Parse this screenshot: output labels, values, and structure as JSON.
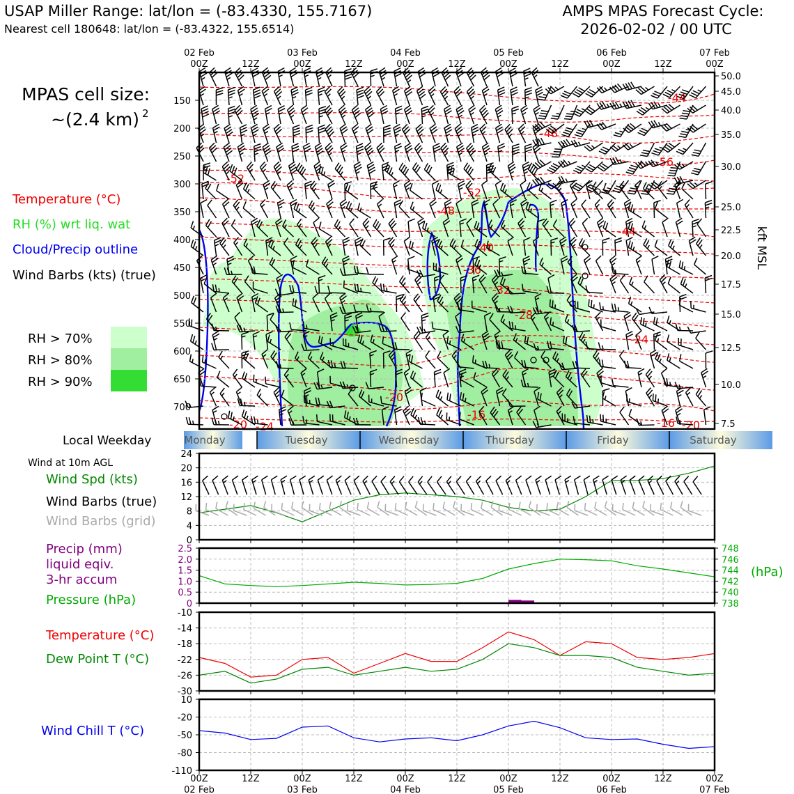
{
  "header": {
    "left_title": "USAP Miller Range: lat/lon = (-83.4330, 155.7167)",
    "left_sub": "Nearest cell 180648: lat/lon = (-83.4322, 155.6514)",
    "right_title": "AMPS MPAS Forecast Cycle:",
    "right_sub": "2026-02-02 / 00 UTC"
  },
  "legend": {
    "cell_size_line1": "MPAS cell size:",
    "cell_size_line2": "~(2.4 km)",
    "cell_size_exp": "2",
    "temperature": "Temperature (°C)",
    "rh": "RH (%) wrt liq. wat",
    "cloud": "Cloud/Precip outline",
    "wind_barbs": "Wind Barbs (kts) (true)",
    "rh70": "RH > 70%",
    "rh80": "RH > 80%",
    "rh90": "RH > 90%"
  },
  "colors": {
    "temperature": "#ee0000",
    "rh_text": "#22dd22",
    "cloud": "#0000ee",
    "rh70": "#ccffcc",
    "rh80": "#a0eea0",
    "rh90": "#33dd33",
    "wind_spd": "#008800",
    "precip": "#800080",
    "pressure": "#00aa00",
    "grid_barbs": "#aaaaaa",
    "windchill": "#0000ee"
  },
  "time_axis": {
    "top_dates": [
      "02 Feb",
      "03 Feb",
      "04 Feb",
      "05 Feb",
      "06 Feb",
      "07 Feb"
    ],
    "ticks": [
      "00Z",
      "12Z",
      "00Z",
      "12Z",
      "00Z",
      "12Z",
      "00Z",
      "12Z",
      "00Z",
      "12Z",
      "00Z"
    ],
    "bottom_dates": [
      "02 Feb",
      "03 Feb",
      "04 Feb",
      "05 Feb",
      "06 Feb",
      "07 Feb"
    ]
  },
  "weekday": {
    "label": "Local Weekday",
    "days": [
      "Monday",
      "Tuesday",
      "Wednesday",
      "Thursday",
      "Friday",
      "Saturday"
    ]
  },
  "chart_data": [
    {
      "type": "line",
      "name": "time-height cross section",
      "y_axis_left_label_values": [
        "150",
        "200",
        "250",
        "300",
        "350",
        "400",
        "450",
        "500",
        "550",
        "600",
        "650",
        "700"
      ],
      "y_axis_left_units": "hPa",
      "y_axis_right_values": [
        "50.0",
        "45.0",
        "40.0",
        "35.0",
        "30.0",
        "25.0",
        "22.5",
        "20.0",
        "17.5",
        "15.0",
        "12.5",
        "10.0",
        "7.5"
      ],
      "y_axis_right_label": "kft MSL",
      "temperature_labels": [
        "-44",
        "-48",
        "-56",
        "-52",
        "-52",
        "-48",
        "-44",
        "-40",
        "-36",
        "-32",
        "-28",
        "-24",
        "-20",
        "-16",
        "-20",
        "-24",
        "-16",
        "-20"
      ],
      "ylim": [
        100,
        740
      ]
    },
    {
      "type": "line",
      "name": "surface wind",
      "title": "Wind at 10m AGL",
      "labels": [
        "Wind Spd (kts)",
        "Wind Barbs (true)",
        "Wind Barbs (grid)"
      ],
      "y_ticks": [
        "24",
        "20",
        "16",
        "12",
        "8",
        "4",
        "0"
      ],
      "ylim": [
        0,
        24
      ],
      "x_hours": [
        0,
        6,
        12,
        18,
        24,
        30,
        36,
        42,
        48,
        54,
        60,
        66,
        72,
        78,
        84,
        90,
        96,
        102,
        108,
        114,
        120
      ],
      "wind_speed_kts": [
        7.5,
        8.5,
        9.5,
        7.5,
        5,
        8,
        11,
        12.5,
        13,
        12.5,
        12,
        11,
        9,
        8,
        8.5,
        12,
        16.5,
        16.5,
        17,
        18.5,
        20.5
      ]
    },
    {
      "type": "line",
      "name": "precip pressure",
      "labels": [
        "Precip (mm)",
        "liquid eqiv.",
        "3-hr accum",
        "Pressure (hPa)"
      ],
      "precip_ticks": [
        "2.5",
        "2.0",
        "1.5",
        "1.0",
        "0.5",
        "0"
      ],
      "pressure_ticks": [
        "748",
        "746",
        "744",
        "742",
        "740",
        "738"
      ],
      "pressure_unit": "(hPa)",
      "precip_ylim": [
        0,
        2.5
      ],
      "pressure_ylim": [
        738,
        748
      ],
      "x_hours": [
        0,
        6,
        12,
        18,
        24,
        30,
        36,
        42,
        48,
        54,
        60,
        66,
        72,
        78,
        84,
        90,
        96,
        102,
        108,
        114,
        120
      ],
      "pressure_hpa": [
        743,
        741.5,
        741.2,
        741,
        741.2,
        741.5,
        741.8,
        741.6,
        741.3,
        741.4,
        741.6,
        742.5,
        744.2,
        745.2,
        746,
        745.9,
        745.7,
        744.8,
        744.2,
        743.5,
        742.8
      ],
      "precip_bars": [
        {
          "x": 72,
          "value": 0.15
        },
        {
          "x": 75,
          "value": 0.12
        }
      ]
    },
    {
      "type": "line",
      "name": "temperature dewpoint",
      "labels": [
        "Temperature (°C)",
        "Dew Point T (°C)"
      ],
      "y_ticks": [
        "-10",
        "-14",
        "-18",
        "-22",
        "-26",
        "-30"
      ],
      "ylim": [
        -30,
        -10
      ],
      "x_hours": [
        0,
        6,
        12,
        18,
        24,
        30,
        36,
        42,
        48,
        54,
        60,
        66,
        72,
        78,
        84,
        90,
        96,
        102,
        108,
        114,
        120
      ],
      "temperature_c": [
        -21.5,
        -23,
        -26.5,
        -26,
        -22,
        -21.5,
        -25.5,
        -23,
        -20.5,
        -22.5,
        -22.5,
        -19,
        -15,
        -17,
        -21,
        -17.5,
        -18,
        -21.5,
        -22,
        -21.5,
        -20.5
      ],
      "dewpoint_c": [
        -26,
        -25,
        -28,
        -27,
        -24.5,
        -24,
        -26,
        -25,
        -24,
        -25,
        -24.5,
        -22,
        -18,
        -19,
        -21,
        -21,
        -21.5,
        -24,
        -25,
        -26,
        -25.5
      ]
    },
    {
      "type": "line",
      "name": "wind chill",
      "labels": [
        "Wind Chill T (°C)"
      ],
      "y_ticks": [
        "10",
        "-20",
        "-50",
        "-80",
        "-110"
      ],
      "ylim": [
        -110,
        10
      ],
      "x_hours": [
        0,
        6,
        12,
        18,
        24,
        30,
        36,
        42,
        48,
        54,
        60,
        66,
        72,
        78,
        84,
        90,
        96,
        102,
        108,
        114,
        120
      ],
      "windchill_c": [
        -43,
        -47,
        -58,
        -56,
        -37,
        -35,
        -55,
        -62,
        -57,
        -55,
        -60,
        -50,
        -35,
        -27,
        -38,
        -55,
        -58,
        -57,
        -66,
        -73,
        -70
      ]
    }
  ]
}
